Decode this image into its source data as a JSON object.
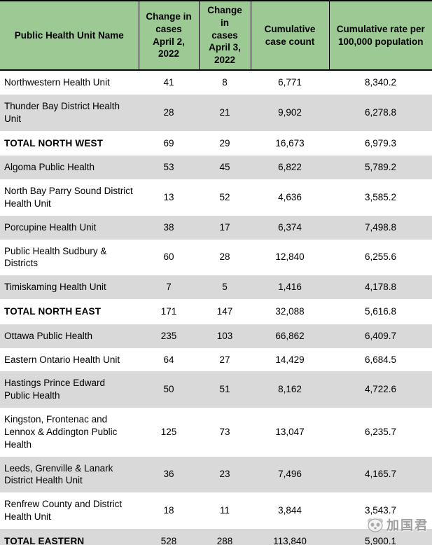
{
  "colors": {
    "header_green": "#9DC995",
    "row_gray": "#D9D9D9",
    "border_black": "#000000",
    "text_black": "#000000",
    "watermark_gray": "#8F8F8F"
  },
  "table": {
    "columns": [
      {
        "label": "Public Health Unit Name"
      },
      {
        "label": "Change in\ncases\nApril 2,\n2022"
      },
      {
        "label": "Change in\ncases\nApril 3,\n2022"
      },
      {
        "label": "Cumulative\ncase count"
      },
      {
        "label": "Cumulative rate per\n100,000 population"
      }
    ],
    "rows": [
      {
        "name": "Northwestern Health Unit",
        "apr2": "41",
        "apr3": "8",
        "cumulative": "6,771",
        "rate": "8,340.2",
        "total": false
      },
      {
        "name": "Thunder Bay District Health Unit",
        "apr2": "28",
        "apr3": "21",
        "cumulative": "9,902",
        "rate": "6,278.8",
        "total": false
      },
      {
        "name": "TOTAL NORTH WEST",
        "apr2": "69",
        "apr3": "29",
        "cumulative": "16,673",
        "rate": "6,979.3",
        "total": true
      },
      {
        "name": "Algoma Public Health",
        "apr2": "53",
        "apr3": "45",
        "cumulative": "6,822",
        "rate": "5,789.2",
        "total": false
      },
      {
        "name": "North Bay Parry Sound District Health Unit",
        "apr2": "13",
        "apr3": "52",
        "cumulative": "4,636",
        "rate": "3,585.2",
        "total": false
      },
      {
        "name": "Porcupine Health Unit",
        "apr2": "38",
        "apr3": "17",
        "cumulative": "6,374",
        "rate": "7,498.8",
        "total": false
      },
      {
        "name": "Public Health Sudbury & Districts",
        "apr2": "60",
        "apr3": "28",
        "cumulative": "12,840",
        "rate": "6,255.6",
        "total": false
      },
      {
        "name": "Timiskaming Health Unit",
        "apr2": "7",
        "apr3": "5",
        "cumulative": "1,416",
        "rate": "4,178.8",
        "total": false
      },
      {
        "name": "TOTAL NORTH EAST",
        "apr2": "171",
        "apr3": "147",
        "cumulative": "32,088",
        "rate": "5,616.8",
        "total": true
      },
      {
        "name": "Ottawa Public Health",
        "apr2": "235",
        "apr3": "103",
        "cumulative": "66,862",
        "rate": "6,409.7",
        "total": false
      },
      {
        "name": "Eastern Ontario Health Unit",
        "apr2": "64",
        "apr3": "27",
        "cumulative": "14,429",
        "rate": "6,684.5",
        "total": false
      },
      {
        "name": "Hastings Prince Edward Public Health",
        "apr2": "50",
        "apr3": "51",
        "cumulative": "8,162",
        "rate": "4,722.6",
        "total": false
      },
      {
        "name": "Kingston, Frontenac and Lennox & Addington Public Health",
        "apr2": "125",
        "apr3": "73",
        "cumulative": "13,047",
        "rate": "6,235.7",
        "total": false
      },
      {
        "name": "Leeds, Grenville & Lanark District Health Unit",
        "apr2": "36",
        "apr3": "23",
        "cumulative": "7,496",
        "rate": "4,165.7",
        "total": false
      },
      {
        "name": "Renfrew County and District Health Unit",
        "apr2": "18",
        "apr3": "11",
        "cumulative": "3,844",
        "rate": "3,543.7",
        "total": false
      },
      {
        "name": "TOTAL EASTERN",
        "apr2": "528",
        "apr3": "288",
        "cumulative": "113,840",
        "rate": "5,900.1",
        "total": true
      }
    ]
  },
  "watermark": {
    "text": "加国君",
    "icon": "panda-mascot-icon"
  }
}
